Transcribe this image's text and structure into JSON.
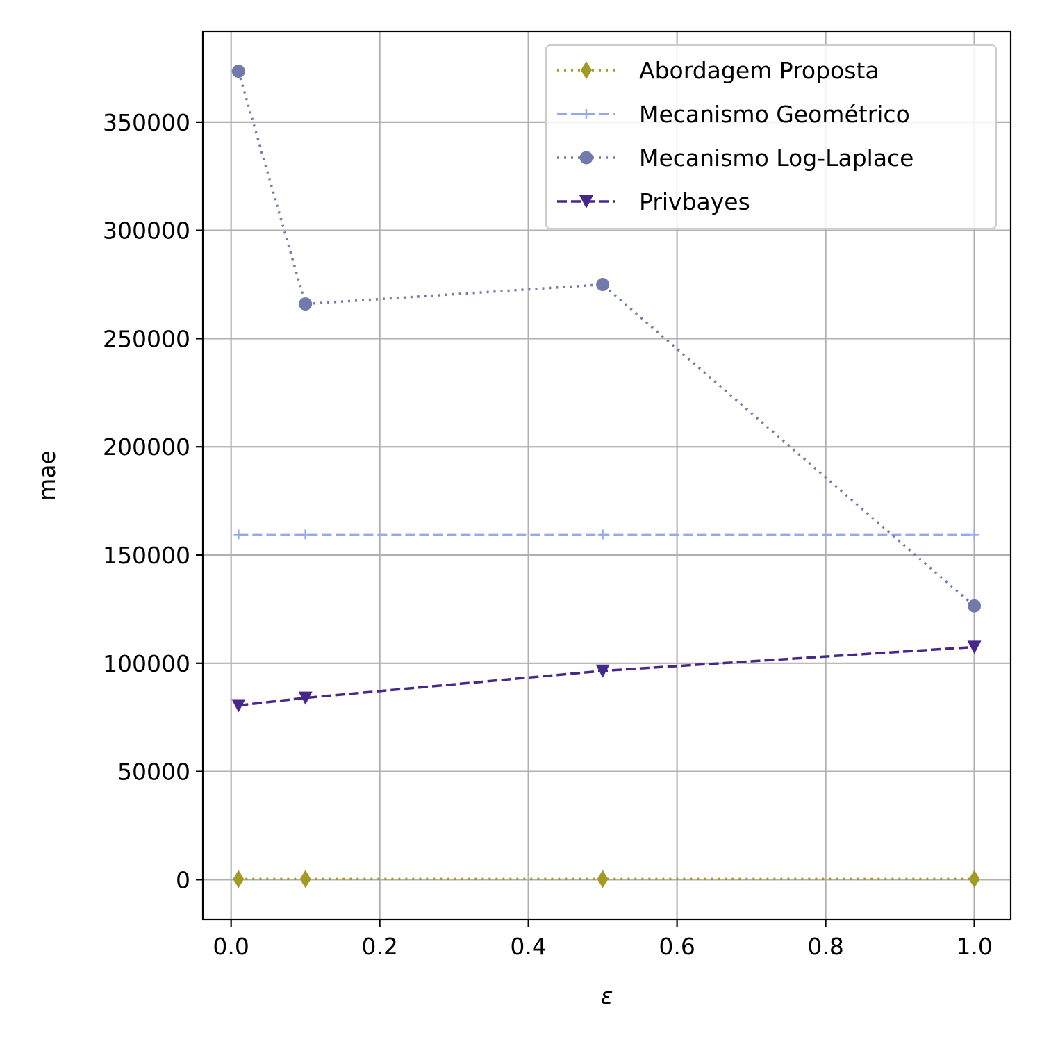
{
  "chart_data": {
    "type": "line",
    "title": "",
    "xlabel": "ε",
    "ylabel": "mae",
    "xlim": [
      -0.038,
      1.049
    ],
    "ylim": [
      -18500,
      392000
    ],
    "x_ticks": [
      0.0,
      0.2,
      0.4,
      0.6,
      0.8,
      1.0
    ],
    "x_tick_labels": [
      "0.0",
      "0.2",
      "0.4",
      "0.6",
      "0.8",
      "1.0"
    ],
    "y_ticks": [
      0,
      50000,
      100000,
      150000,
      200000,
      250000,
      300000,
      350000
    ],
    "y_tick_labels": [
      "0",
      "50000",
      "100000",
      "150000",
      "200000",
      "250000",
      "300000",
      "350000"
    ],
    "grid": true,
    "legend_position": "upper-right",
    "x": [
      0.01,
      0.1,
      0.5,
      1.0
    ],
    "series": [
      {
        "name": "Abordagem Proposta",
        "values": [
          300,
          300,
          300,
          300
        ],
        "color": "#a39a26",
        "dash": "dotted",
        "marker": "diamond"
      },
      {
        "name": "Mecanismo Geométrico",
        "values": [
          159500,
          159500,
          159500,
          159500
        ],
        "color": "#94a9f2",
        "dash": "dashed",
        "marker": "plus"
      },
      {
        "name": "Mecanismo Log-Laplace",
        "values": [
          373500,
          266000,
          275000,
          126500
        ],
        "color": "#717aab",
        "dash": "dotted",
        "marker": "circle"
      },
      {
        "name": "Privbayes",
        "values": [
          80500,
          84000,
          96500,
          107500
        ],
        "color": "#46288a",
        "dash": "dashed",
        "marker": "triangle-down"
      }
    ]
  }
}
